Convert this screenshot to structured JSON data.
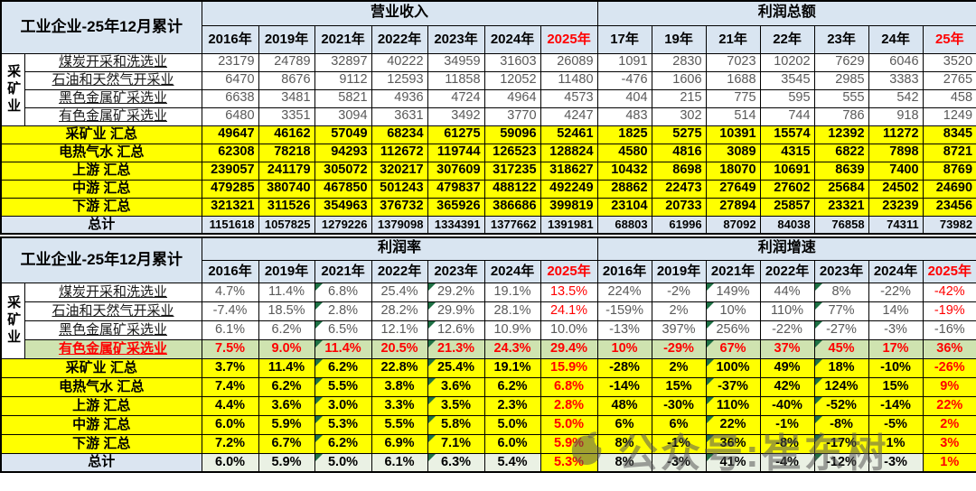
{
  "colors": {
    "header_blue": "#d9e5f1",
    "summary_yellow": "#ffff00",
    "highlight_green": "#cfe3b0",
    "total_blue": "#dbe5f1",
    "total_green": "#eaf1e4",
    "alert_red": "#ff0000",
    "marker_green": "#1e7145"
  },
  "watermark": {
    "text": "公众号:崔东树"
  },
  "chart_data": [
    {
      "type": "table",
      "title": "工业企业-25年12月累计",
      "group_label": "采矿业",
      "group_rows": 4,
      "marker_columns": [],
      "sections": [
        {
          "label": "营业收入",
          "columns": [
            "2016年",
            "2019年",
            "2021年",
            "2022年",
            "2023年",
            "2024年",
            "2025年"
          ]
        },
        {
          "label": "利润总额",
          "columns": [
            "17年",
            "19年",
            "21年",
            "22年",
            "23年",
            "24年",
            "25年"
          ]
        }
      ],
      "rows": [
        {
          "label": "煤炭开采和洗选业",
          "style": "plain",
          "in_group": true,
          "values_a": [
            "23179",
            "24789",
            "32897",
            "40222",
            "34959",
            "31603",
            "26089"
          ],
          "values_b": [
            "1091",
            "2830",
            "7023",
            "10202",
            "7629",
            "6046",
            "3520"
          ]
        },
        {
          "label": "石油和天然气开采业",
          "style": "plain",
          "in_group": true,
          "values_a": [
            "6470",
            "8676",
            "9112",
            "12593",
            "11858",
            "12052",
            "11480"
          ],
          "values_b": [
            "-476",
            "1606",
            "1688",
            "3545",
            "2985",
            "3383",
            "2765"
          ]
        },
        {
          "label": "黑色金属矿采选业",
          "style": "plain",
          "in_group": true,
          "values_a": [
            "6638",
            "3481",
            "5821",
            "4936",
            "4724",
            "4964",
            "4573"
          ],
          "values_b": [
            "404",
            "215",
            "775",
            "595",
            "555",
            "542",
            "458"
          ]
        },
        {
          "label": "有色金属矿采选业",
          "style": "plain",
          "in_group": true,
          "values_a": [
            "6480",
            "3351",
            "3094",
            "3631",
            "3492",
            "3770",
            "4247"
          ],
          "values_b": [
            "483",
            "302",
            "514",
            "744",
            "786",
            "918",
            "1249"
          ]
        },
        {
          "label": "采矿业 汇总",
          "style": "summary",
          "values_a": [
            "49647",
            "46162",
            "57049",
            "68234",
            "61275",
            "59096",
            "52461"
          ],
          "values_b": [
            "1825",
            "5275",
            "10391",
            "15574",
            "12392",
            "11272",
            "8345"
          ]
        },
        {
          "label": "电热气水 汇总",
          "style": "summary",
          "values_a": [
            "62308",
            "78218",
            "94293",
            "112672",
            "119744",
            "126523",
            "128824"
          ],
          "values_b": [
            "4580",
            "4816",
            "3089",
            "4315",
            "6822",
            "7898",
            "8721"
          ]
        },
        {
          "label": "上游 汇总",
          "style": "summary",
          "values_a": [
            "239057",
            "241179",
            "305072",
            "320217",
            "307609",
            "317235",
            "318627"
          ],
          "values_b": [
            "10432",
            "8698",
            "18070",
            "10691",
            "8639",
            "7400",
            "8769"
          ]
        },
        {
          "label": "中游 汇总",
          "style": "summary",
          "values_a": [
            "479285",
            "380740",
            "467850",
            "501243",
            "479837",
            "488122",
            "492249"
          ],
          "values_b": [
            "28862",
            "22473",
            "27649",
            "27602",
            "25684",
            "24502",
            "24690"
          ]
        },
        {
          "label": "下游 汇总",
          "style": "summary",
          "values_a": [
            "321321",
            "311526",
            "354963",
            "376732",
            "365926",
            "386686",
            "399819"
          ],
          "values_b": [
            "23104",
            "20733",
            "27894",
            "25857",
            "23321",
            "23239",
            "23456"
          ]
        },
        {
          "label": "总计",
          "style": "total",
          "values_a": [
            "1151618",
            "1057825",
            "1279226",
            "1379098",
            "1334391",
            "1377662",
            "1391981"
          ],
          "values_b": [
            "68803",
            "61996",
            "87092",
            "84038",
            "76858",
            "74311",
            "73982"
          ]
        }
      ]
    },
    {
      "type": "table",
      "title": "工业企业-25年12月累计",
      "group_label": "采矿业",
      "group_rows": 4,
      "marker_columns": [
        2,
        4
      ],
      "sections": [
        {
          "label": "利润率",
          "columns": [
            "2016年",
            "2019年",
            "2021年",
            "2022年",
            "2023年",
            "2024年",
            "2025年"
          ]
        },
        {
          "label": "利润增速",
          "columns": [
            "2016年",
            "2019年",
            "2021年",
            "2022年",
            "2023年",
            "2024年",
            "2025年"
          ]
        }
      ],
      "rows": [
        {
          "label": "煤炭开采和洗选业",
          "style": "plain",
          "in_group": true,
          "last_red": true,
          "values_a": [
            "4.7%",
            "11.4%",
            "6.8%",
            "25.4%",
            "29.2%",
            "19.1%",
            "13.5%"
          ],
          "values_b": [
            "224%",
            "-2%",
            "149%",
            "44%",
            "8%",
            "-22%",
            "-42%"
          ]
        },
        {
          "label": "石油和天然气开采业",
          "style": "plain",
          "in_group": true,
          "last_red": true,
          "values_a": [
            "-7.4%",
            "18.5%",
            "2.8%",
            "28.2%",
            "29.9%",
            "28.1%",
            "24.1%"
          ],
          "values_b": [
            "-159%",
            "2%",
            "10%",
            "110%",
            "77%",
            "14%",
            "-19%"
          ]
        },
        {
          "label": "黑色金属矿采选业",
          "style": "plain",
          "in_group": true,
          "last_red": false,
          "values_a": [
            "6.1%",
            "6.2%",
            "6.5%",
            "12.1%",
            "12.6%",
            "10.9%",
            "10.0%"
          ],
          "values_b": [
            "-13%",
            "397%",
            "256%",
            "-22%",
            "-27%",
            "-3%",
            "-16%"
          ]
        },
        {
          "label": "有色金属矿采选业",
          "style": "highlight",
          "in_group": true,
          "values_a": [
            "7.5%",
            "9.0%",
            "11.4%",
            "20.5%",
            "21.3%",
            "24.3%",
            "29.4%"
          ],
          "values_b": [
            "10%",
            "-29%",
            "67%",
            "37%",
            "45%",
            "17%",
            "36%"
          ]
        },
        {
          "label": "采矿业 汇总",
          "style": "summary",
          "last_red": true,
          "values_a": [
            "3.7%",
            "11.4%",
            "6.2%",
            "22.8%",
            "25.4%",
            "19.1%",
            "15.9%"
          ],
          "values_b": [
            "-28%",
            "2%",
            "100%",
            "49%",
            "18%",
            "-10%",
            "-26%"
          ]
        },
        {
          "label": "电热气水 汇总",
          "style": "summary",
          "last_red": true,
          "values_a": [
            "7.4%",
            "6.2%",
            "5.5%",
            "3.8%",
            "3.6%",
            "6.2%",
            "6.8%"
          ],
          "values_b": [
            "-14%",
            "15%",
            "-37%",
            "42%",
            "124%",
            "15%",
            "9%"
          ]
        },
        {
          "label": "上游 汇总",
          "style": "summary",
          "last_red": true,
          "values_a": [
            "4.4%",
            "3.6%",
            "3.0%",
            "3.3%",
            "3.5%",
            "2.3%",
            "2.8%"
          ],
          "values_b": [
            "48%",
            "-30%",
            "110%",
            "-40%",
            "-52%",
            "-14%",
            "22%"
          ]
        },
        {
          "label": "中游 汇总",
          "style": "summary",
          "last_red": true,
          "values_a": [
            "6.0%",
            "5.9%",
            "5.3%",
            "5.5%",
            "5.8%",
            "5.0%",
            "5.0%"
          ],
          "values_b": [
            "6%",
            "6%",
            "22%",
            "-1%",
            "-8%",
            "-5%",
            "2%"
          ]
        },
        {
          "label": "下游 汇总",
          "style": "summary",
          "last_red": true,
          "values_a": [
            "7.2%",
            "6.7%",
            "6.2%",
            "6.9%",
            "7.1%",
            "6.0%",
            "5.9%"
          ],
          "values_b": [
            "8%",
            "-1%",
            "36%",
            "-8%",
            "-17%",
            "1%",
            "3%"
          ]
        },
        {
          "label": "总计",
          "style": "total",
          "last_red": true,
          "last_yellow": true,
          "values_a": [
            "6.0%",
            "5.9%",
            "5.0%",
            "6.1%",
            "6.3%",
            "5.4%",
            "5.3%"
          ],
          "values_b": [
            "8%",
            "-3%",
            "41%",
            "-4%",
            "-12%",
            "-3%",
            "1%"
          ]
        }
      ]
    }
  ]
}
